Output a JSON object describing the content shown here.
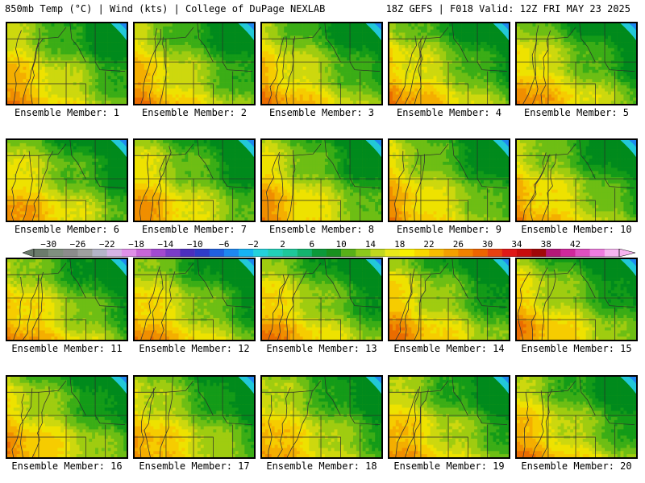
{
  "header": {
    "left_title": "850mb Temp (°C) | Wind (kts) | College of DuPage NEXLAB",
    "right_title": "18Z GEFS | F018 Valid: 12Z FRI MAY 23 2025"
  },
  "panels": [
    {
      "label": "Ensemble Member: 1"
    },
    {
      "label": "Ensemble Member: 2"
    },
    {
      "label": "Ensemble Member: 3"
    },
    {
      "label": "Ensemble Member: 4"
    },
    {
      "label": "Ensemble Member: 5"
    },
    {
      "label": "Ensemble Member: 6"
    },
    {
      "label": "Ensemble Member: 7"
    },
    {
      "label": "Ensemble Member: 8"
    },
    {
      "label": "Ensemble Member: 9"
    },
    {
      "label": "Ensemble Member: 10"
    },
    {
      "label": "Ensemble Member: 11"
    },
    {
      "label": "Ensemble Member: 12"
    },
    {
      "label": "Ensemble Member: 13"
    },
    {
      "label": "Ensemble Member: 14"
    },
    {
      "label": "Ensemble Member: 15"
    },
    {
      "label": "Ensemble Member: 16"
    },
    {
      "label": "Ensemble Member: 17"
    },
    {
      "label": "Ensemble Member: 18"
    },
    {
      "label": "Ensemble Member: 19"
    },
    {
      "label": "Ensemble Member: 20"
    }
  ],
  "colorbar": {
    "tick_labels": [
      "−30",
      "−26",
      "−22",
      "−18",
      "−14",
      "−10",
      "−6",
      "−2",
      "2",
      "6",
      "10",
      "14",
      "18",
      "22",
      "26",
      "30",
      "34",
      "38",
      "42"
    ],
    "colors": [
      "#6b7b6b",
      "#7f8f7f",
      "#8c8c8c",
      "#a0a0a0",
      "#b4b4c8",
      "#d6b4e6",
      "#e090e8",
      "#c866d8",
      "#a24ad0",
      "#7a3cc8",
      "#4b2fbe",
      "#2f3cc8",
      "#2060e0",
      "#1e88f0",
      "#16b4f4",
      "#24d2dc",
      "#22d0b8",
      "#1ec89a",
      "#14b46e",
      "#0c9a3a",
      "#18901e",
      "#58b018",
      "#8cc81c",
      "#c0d81e",
      "#e8e81a",
      "#f8f000",
      "#f8d800",
      "#f8bc00",
      "#f4a000",
      "#f28200",
      "#ee6400",
      "#e84010",
      "#e01818",
      "#c80c0c",
      "#a00808",
      "#b41878",
      "#d0289c",
      "#e050c0",
      "#f07ce0",
      "#f8b4f0"
    ]
  }
}
